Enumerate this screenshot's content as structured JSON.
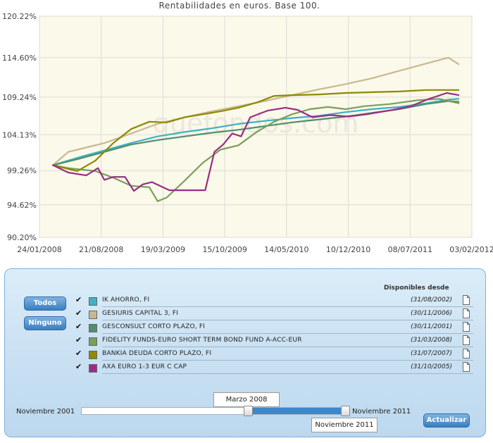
{
  "chart_data": {
    "type": "line",
    "title": "Rentabilidades en euros. Base 100.",
    "y_ticks": [
      "120.22%",
      "114.60%",
      "109.24%",
      "104.13%",
      "99.26%",
      "94.62%",
      "90.20%"
    ],
    "y_tick_values": [
      120.22,
      114.6,
      109.24,
      104.13,
      99.26,
      94.62,
      90.2
    ],
    "x_ticks": [
      "24/01/2008",
      "21/08/2008",
      "19/03/2009",
      "15/10/2009",
      "14/05/2010",
      "10/12/2010",
      "08/07/2011",
      "03/02/2012"
    ],
    "x_range": [
      "2008-01-24",
      "2012-02-03"
    ],
    "ylim": [
      90.2,
      120.22
    ],
    "grid": true,
    "watermark": "quefondos.com",
    "series": [
      {
        "name": "IK AHORRO, FI",
        "color": "#3fb0c4",
        "x": [
          "2008-03-10",
          "2008-06-01",
          "2008-09-01",
          "2008-12-01",
          "2009-03-01",
          "2009-06-01",
          "2009-09-01",
          "2009-12-01",
          "2010-03-01",
          "2010-06-01",
          "2010-09-01",
          "2010-12-01",
          "2011-03-01",
          "2011-06-01",
          "2011-09-01",
          "2011-11-15",
          "2011-12-20"
        ],
        "y": [
          100.0,
          101.0,
          102.0,
          103.0,
          103.9,
          104.5,
          105.0,
          105.6,
          106.0,
          106.4,
          106.7,
          107.2,
          107.6,
          107.9,
          108.4,
          108.9,
          109.0
        ]
      },
      {
        "name": "GESIURIS CAPITAL 3, FI",
        "color": "#c9b88f",
        "x": [
          "2008-03-10",
          "2008-05-01",
          "2008-09-01",
          "2008-12-01",
          "2009-03-01",
          "2009-06-01",
          "2009-09-01",
          "2009-12-01",
          "2010-03-01",
          "2010-06-01",
          "2010-09-01",
          "2010-12-01",
          "2011-03-01",
          "2011-06-01",
          "2011-09-01",
          "2011-11-15",
          "2011-12-20"
        ],
        "y": [
          100.0,
          101.8,
          103.0,
          104.3,
          105.6,
          106.5,
          107.3,
          108.0,
          108.7,
          109.5,
          110.3,
          111.0,
          111.8,
          112.8,
          113.8,
          114.6,
          113.7
        ]
      },
      {
        "name": "GESCONSULT CORTO PLAZO, FI",
        "color": "#4f8f6e",
        "x": [
          "2008-03-10",
          "2008-06-01",
          "2008-09-01",
          "2008-12-01",
          "2009-03-01",
          "2009-06-01",
          "2009-09-01",
          "2009-12-01",
          "2010-03-01",
          "2010-06-01",
          "2010-09-01",
          "2010-12-01",
          "2011-03-01",
          "2011-06-01",
          "2011-09-01",
          "2011-11-15",
          "2011-12-20"
        ],
        "y": [
          100.0,
          100.8,
          101.8,
          102.8,
          103.4,
          103.9,
          104.4,
          104.8,
          105.3,
          105.8,
          106.2,
          106.6,
          107.1,
          107.6,
          108.3,
          108.7,
          108.6
        ]
      },
      {
        "name": "FIDELITY FUNDS-EURO SHORT TERM BOND FUND A-ACC-EUR",
        "color": "#79a05a",
        "x": [
          "2008-03-10",
          "2008-05-01",
          "2008-08-01",
          "2008-10-01",
          "2008-12-01",
          "2009-02-01",
          "2009-03-01",
          "2009-04-01",
          "2009-06-01",
          "2009-08-01",
          "2009-10-01",
          "2009-12-01",
          "2010-02-01",
          "2010-04-01",
          "2010-06-01",
          "2010-08-01",
          "2010-10-01",
          "2010-12-01",
          "2011-02-01",
          "2011-05-01",
          "2011-08-01",
          "2011-10-15",
          "2011-12-20"
        ],
        "y": [
          100.0,
          99.6,
          99.2,
          98.3,
          97.2,
          97.0,
          95.1,
          95.6,
          97.9,
          100.3,
          102.1,
          102.7,
          104.5,
          105.9,
          106.9,
          107.6,
          107.9,
          107.6,
          108.0,
          108.3,
          108.8,
          109.0,
          108.4
        ]
      },
      {
        "name": "BANKIA DEUDA CORTO PLAZO, FI",
        "color": "#8c8a00",
        "x": [
          "2008-03-10",
          "2008-06-01",
          "2008-08-01",
          "2008-10-01",
          "2008-12-01",
          "2009-02-01",
          "2009-04-01",
          "2009-06-01",
          "2009-08-01",
          "2009-10-01",
          "2009-12-01",
          "2010-02-01",
          "2010-04-01",
          "2010-06-01",
          "2010-09-01",
          "2010-12-01",
          "2011-03-01",
          "2011-06-01",
          "2011-09-01",
          "2011-12-20"
        ],
        "y": [
          100.0,
          99.2,
          100.6,
          103.0,
          104.9,
          105.9,
          105.8,
          106.5,
          106.9,
          107.3,
          107.8,
          108.5,
          109.4,
          109.5,
          109.6,
          109.8,
          109.9,
          110.0,
          110.2,
          110.2
        ]
      },
      {
        "name": "AXA EURO 1-3 EUR C CAP",
        "color": "#9b2c84",
        "x": [
          "2008-03-10",
          "2008-05-01",
          "2008-07-01",
          "2008-08-10",
          "2008-09-01",
          "2008-10-01",
          "2008-11-10",
          "2008-12-10",
          "2009-01-10",
          "2009-02-10",
          "2009-04-10",
          "2009-06-10",
          "2009-08-10",
          "2009-09-10",
          "2009-10-10",
          "2009-11-10",
          "2009-12-10",
          "2010-01-10",
          "2010-03-10",
          "2010-05-10",
          "2010-06-20",
          "2010-08-10",
          "2010-10-10",
          "2010-12-10",
          "2011-02-10",
          "2011-05-10",
          "2011-07-10",
          "2011-09-10",
          "2011-11-10",
          "2011-12-20"
        ],
        "y": [
          100.0,
          99.0,
          98.6,
          99.6,
          98.0,
          98.4,
          98.4,
          96.5,
          97.4,
          97.7,
          96.6,
          96.6,
          96.6,
          101.8,
          102.8,
          104.3,
          103.9,
          106.5,
          107.4,
          107.8,
          107.5,
          106.5,
          106.8,
          106.6,
          106.9,
          107.5,
          108.0,
          109.0,
          109.8,
          109.5
        ]
      }
    ]
  },
  "panel": {
    "todos_label": "Todos",
    "ninguno_label": "Ninguno",
    "available_header": "Disponibles desde",
    "funds": [
      {
        "name": "IK AHORRO, FI",
        "since": "(31/08/2002)",
        "color": "#3fb0c4",
        "checked": "✔"
      },
      {
        "name": "GESIURIS CAPITAL 3, FI",
        "since": "(30/11/2006)",
        "color": "#c9b88f",
        "checked": "✔"
      },
      {
        "name": "GESCONSULT CORTO PLAZO, FI",
        "since": "(30/11/2001)",
        "color": "#4f8f6e",
        "checked": "✔"
      },
      {
        "name": "FIDELITY FUNDS-EURO SHORT TERM BOND FUND A-ACC-EUR",
        "since": "(31/03/2008)",
        "color": "#79a05a",
        "checked": "✔"
      },
      {
        "name": "BANKIA DEUDA CORTO PLAZO, FI",
        "since": "(31/07/2007)",
        "color": "#8c8a00",
        "checked": "✔"
      },
      {
        "name": "AXA EURO 1-3 EUR C CAP",
        "since": "(31/10/2005)",
        "color": "#9b2c84",
        "checked": "✔"
      }
    ],
    "slider": {
      "min_label": "Noviembre 2001",
      "max_label": "Noviembre 2011",
      "from_value": "Marzo 2008",
      "to_value": "Noviembre 2011"
    },
    "actualizar_label": "Actualizar"
  }
}
